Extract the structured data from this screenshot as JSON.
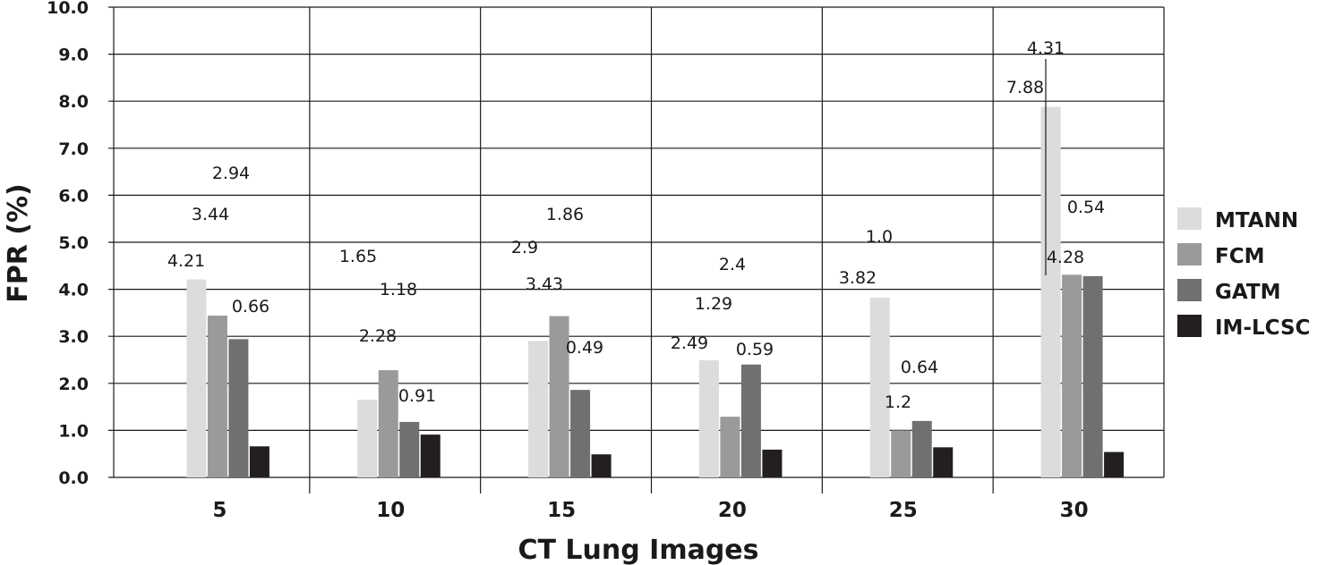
{
  "chart_data": {
    "type": "bar",
    "title": "",
    "xlabel": "CT Lung Images",
    "ylabel": "FPR (%)",
    "ylim": [
      0,
      10
    ],
    "yticks": [
      "0.0",
      "1.0",
      "2.0",
      "3.0",
      "4.0",
      "5.0",
      "6.0",
      "7.0",
      "8.0",
      "9.0",
      "10.0"
    ],
    "grid": true,
    "legend_position": "right",
    "categories": [
      "5",
      "10",
      "15",
      "20",
      "25",
      "30"
    ],
    "series": [
      {
        "name": "MTANN",
        "color": "#dcdcdc",
        "values": [
          4.21,
          1.65,
          2.9,
          2.49,
          3.82,
          7.88
        ]
      },
      {
        "name": "FCM",
        "color": "#9a9a9a",
        "values": [
          3.44,
          2.28,
          3.43,
          1.29,
          1.0,
          4.31
        ]
      },
      {
        "name": "GATM",
        "color": "#707070",
        "values": [
          2.94,
          1.18,
          1.86,
          2.4,
          1.2,
          4.28
        ]
      },
      {
        "name": "IM-LCSC",
        "color": "#231f20",
        "values": [
          0.66,
          0.91,
          0.49,
          0.59,
          0.64,
          0.54
        ]
      }
    ],
    "data_labels": [
      [
        "4.21",
        "3.44",
        "2.94",
        "0.66"
      ],
      [
        "1.65",
        "2.28",
        "1.18",
        "0.91"
      ],
      [
        "2.9",
        "3.43",
        "1.86",
        "0.49"
      ],
      [
        "2.49",
        "1.29",
        "2.4",
        "0.59"
      ],
      [
        "3.82",
        "1.0",
        "1.2",
        "0.64"
      ],
      [
        "7.88",
        "4.31",
        "4.28",
        "0.54"
      ]
    ]
  }
}
